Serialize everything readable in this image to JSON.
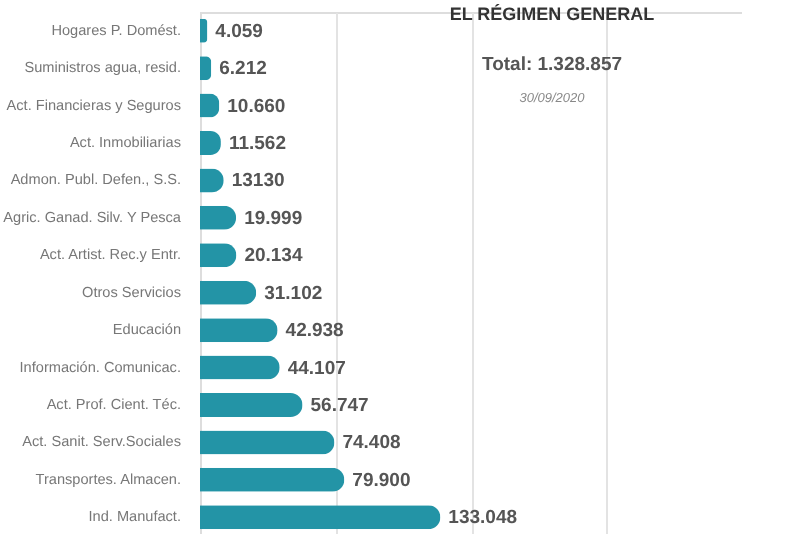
{
  "chart_data": {
    "type": "bar",
    "orientation": "horizontal",
    "title": "EL RÉGIMEN GENERAL",
    "annotations": [
      "Total: 1.328.857",
      "30/09/2020"
    ],
    "categories": [
      "Hogares P. Domést.",
      "Suministros agua, resid.",
      "Act. Financieras y Seguros",
      "Act. Inmobiliarias",
      "Admon. Publ. Defen., S.S.",
      "Agric. Ganad. Silv. Y Pesca",
      "Act. Artist. Rec.y Entr.",
      "Otros Servicios",
      "Educación",
      "Información. Comunicac.",
      "Act. Prof. Cient. Téc.",
      "Act. Sanit. Serv.Sociales",
      "Transportes. Almacen.",
      "Ind. Manufact."
    ],
    "values": [
      4059,
      6212,
      10660,
      11562,
      13130,
      19999,
      20134,
      31102,
      42938,
      44107,
      56747,
      74408,
      79900,
      133048
    ],
    "value_labels": [
      "4.059",
      "6.212",
      "10.660",
      "11.562",
      "13130",
      "19.999",
      "20.134",
      "31.102",
      "42.938",
      "44.107",
      "56.747",
      "74.408",
      "79.900",
      "133.048"
    ],
    "color": "#2394a6",
    "xlim": [
      0,
      300000
    ],
    "xticks": [
      {
        "value": 75000,
        "label": null
      },
      {
        "value": 150000,
        "label": null
      },
      {
        "value": 225000,
        "label": null
      }
    ],
    "grid": "x",
    "tick_labels": "y"
  }
}
